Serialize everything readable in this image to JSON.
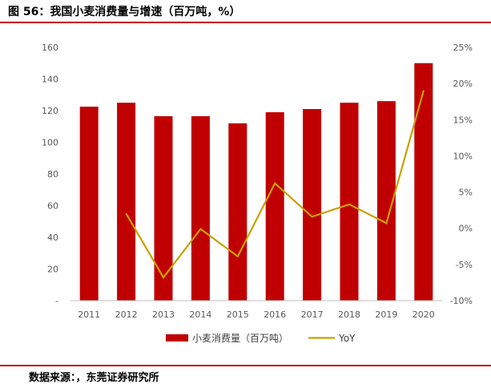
{
  "title": "图 56：我国小麦消费量与增速（百万吨，%）",
  "source": "数据来源：，东莞证券研究所",
  "colors": {
    "bar": "#c00000",
    "line": "#c9a000",
    "rule": "#c00000"
  },
  "chart_data": {
    "type": "bar",
    "categories": [
      "2011",
      "2012",
      "2013",
      "2014",
      "2015",
      "2016",
      "2017",
      "2018",
      "2019",
      "2020"
    ],
    "series": [
      {
        "name": "小麦消费量（百万吨）",
        "type": "bar",
        "axis": "left",
        "values": [
          122.5,
          125,
          116.5,
          116.5,
          112,
          119,
          121,
          125,
          126,
          150
        ]
      },
      {
        "name": "YoY",
        "type": "line",
        "axis": "right",
        "values": [
          null,
          2.0,
          -6.8,
          -0.1,
          -3.9,
          6.2,
          1.6,
          3.3,
          0.7,
          19.0
        ]
      }
    ],
    "ylim_left": [
      0,
      160
    ],
    "ylim_right": [
      -10,
      25
    ],
    "left_ticks": [
      {
        "v": 0,
        "label": "-"
      },
      {
        "v": 20,
        "label": "20"
      },
      {
        "v": 40,
        "label": "40"
      },
      {
        "v": 60,
        "label": "60"
      },
      {
        "v": 80,
        "label": "80"
      },
      {
        "v": 100,
        "label": "100"
      },
      {
        "v": 120,
        "label": "120"
      },
      {
        "v": 140,
        "label": "140"
      },
      {
        "v": 160,
        "label": "160"
      }
    ],
    "right_ticks": [
      {
        "v": -10,
        "label": "-10%"
      },
      {
        "v": -5,
        "label": "-5%"
      },
      {
        "v": 0,
        "label": "0%"
      },
      {
        "v": 5,
        "label": "5%"
      },
      {
        "v": 10,
        "label": "10%"
      },
      {
        "v": 15,
        "label": "15%"
      },
      {
        "v": 20,
        "label": "20%"
      },
      {
        "v": 25,
        "label": "25%"
      }
    ],
    "grid": false,
    "legend": "bottom"
  }
}
